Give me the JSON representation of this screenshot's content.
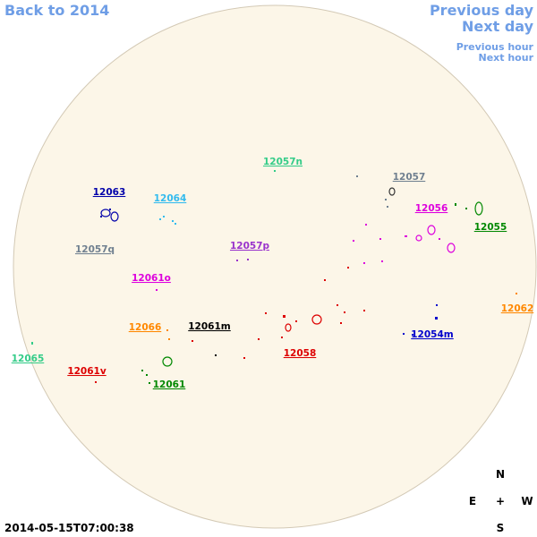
{
  "navigation": {
    "back": "Back to 2014",
    "previous_day": "Previous day",
    "next_day": "Next day",
    "previous_hour": "Previous hour",
    "next_hour": "Next hour"
  },
  "regions": [
    "12057n",
    "12057",
    "12063",
    "12064",
    "12056",
    "12055",
    "12057p",
    "12057q",
    "12061o",
    "12062",
    "12066",
    "12061m",
    "12054m",
    "12058",
    "12065",
    "12061v",
    "12061"
  ],
  "compass": {
    "north": "N",
    "east": "E",
    "center": "+",
    "west": "W",
    "south": "S"
  },
  "timestamp": "2014-05-15T07:00:38"
}
